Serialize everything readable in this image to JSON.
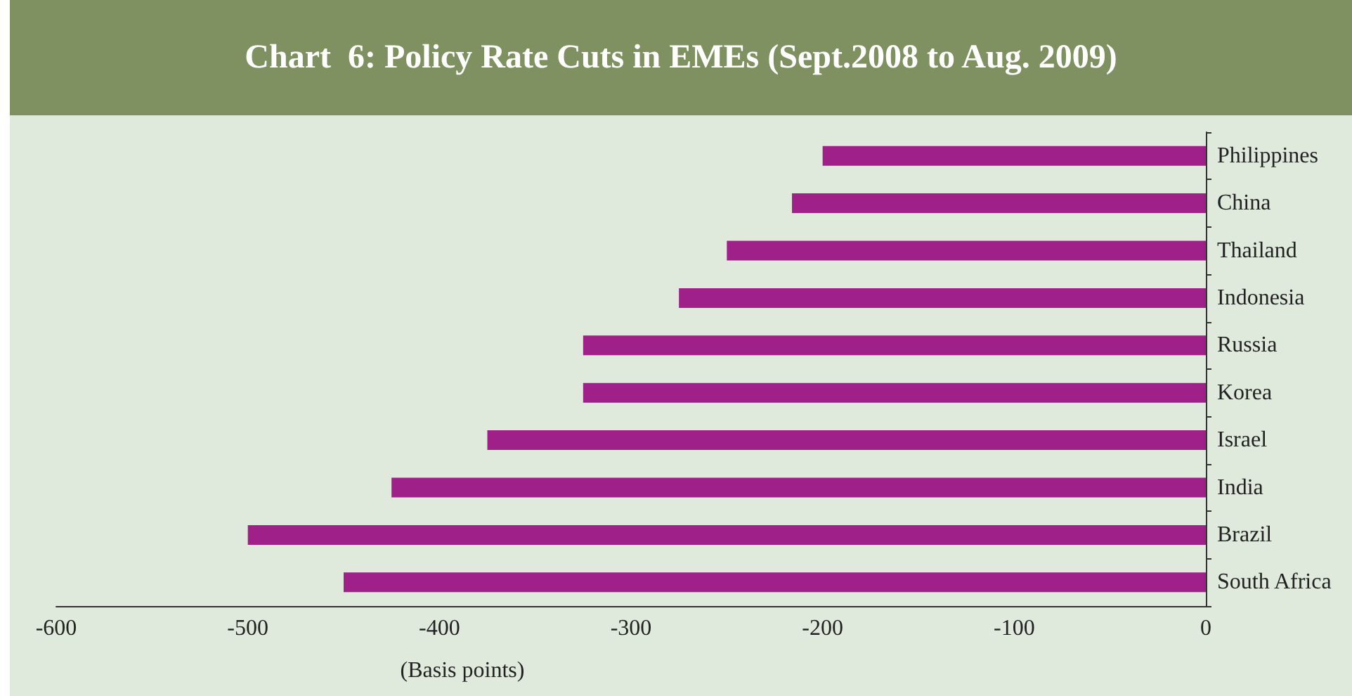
{
  "chart_data": {
    "type": "bar",
    "orientation": "horizontal",
    "title": "Chart  6: Policy Rate Cuts in EMEs (Sept.2008 to Aug. 2009)",
    "xlabel": "(Basis points)",
    "categories": [
      "Philippines",
      "China",
      "Thailand",
      "Indonesia",
      "Russia",
      "Korea",
      "Israel",
      "India",
      "Brazil",
      "South Africa"
    ],
    "values": [
      -200,
      -216,
      -250,
      -275,
      -325,
      -325,
      -375,
      -425,
      -500,
      -450
    ],
    "color": "#a0208a",
    "xlim": [
      -600,
      0
    ],
    "xticks": [
      -600,
      -500,
      -400,
      -300,
      -200,
      -100,
      0
    ],
    "grid": false
  }
}
